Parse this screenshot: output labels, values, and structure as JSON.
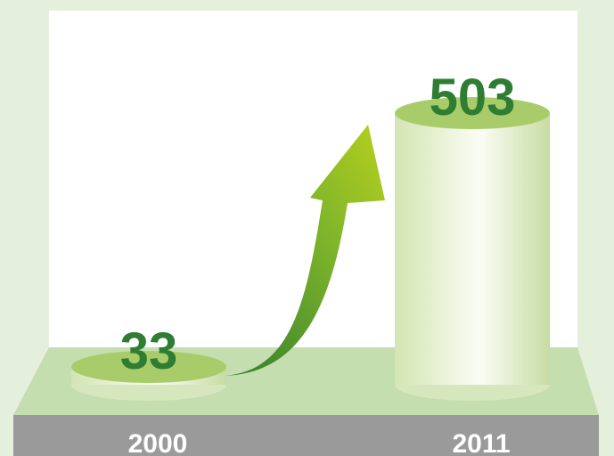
{
  "chart_data": {
    "type": "bar",
    "categories": [
      "2000",
      "2011"
    ],
    "values": [
      33,
      503
    ],
    "color": "#eaf3d6",
    "top_color": "#a9cc6a",
    "label_color": "#2f7d32"
  }
}
